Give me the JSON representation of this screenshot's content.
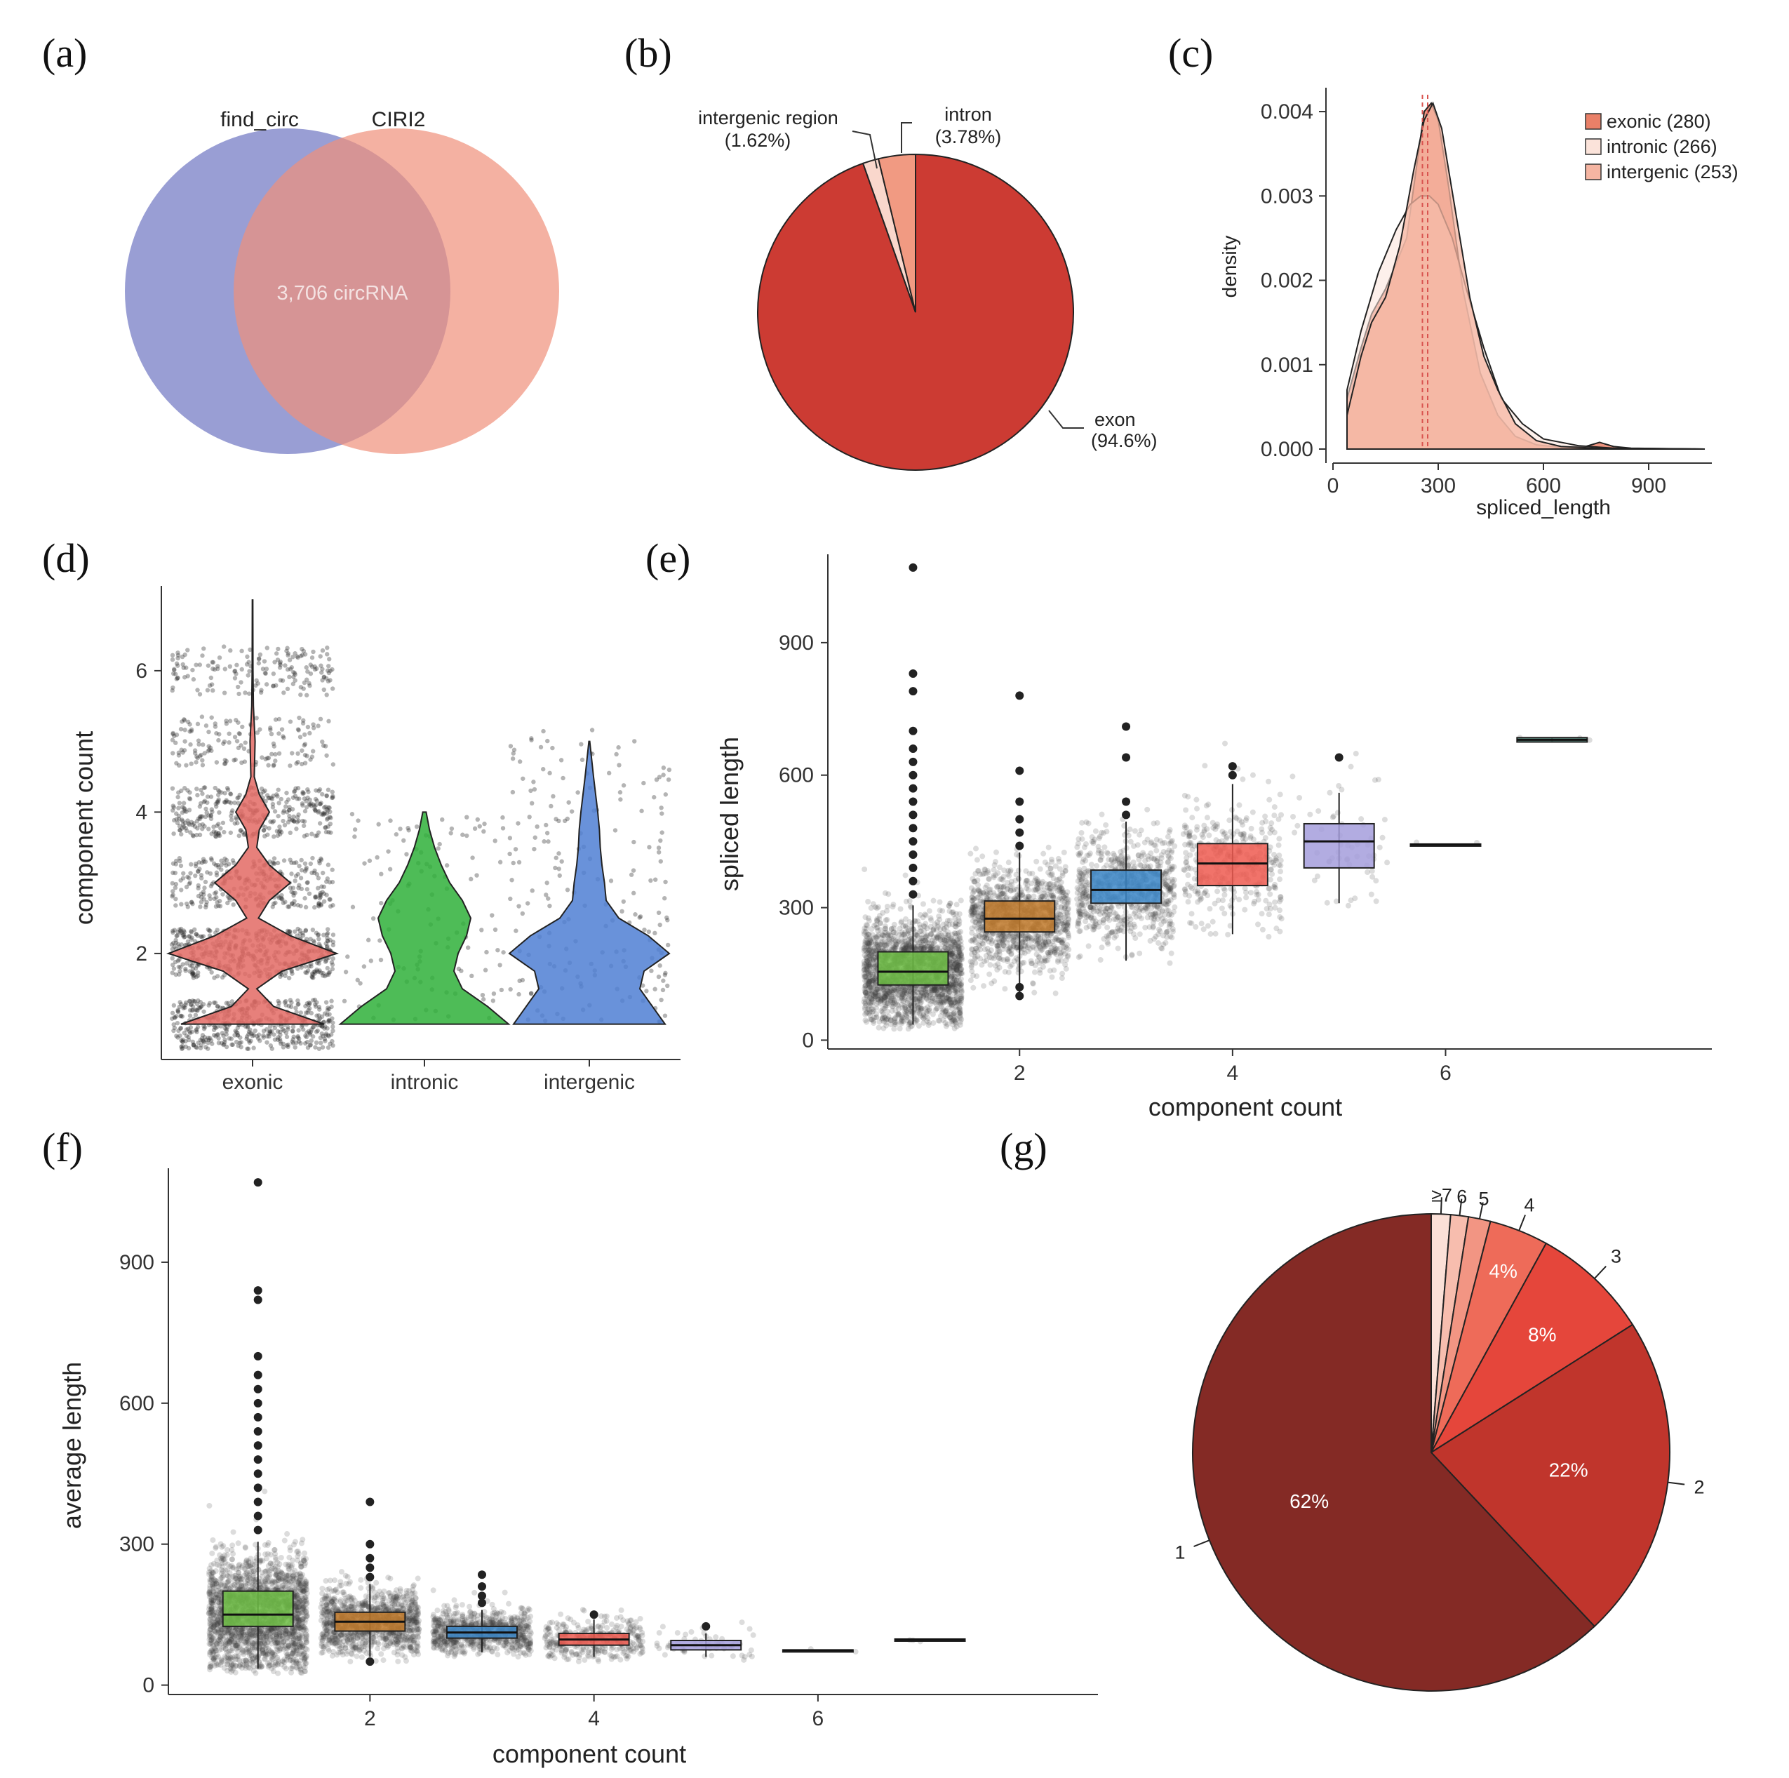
{
  "panels": {
    "a": "(a)",
    "b": "(b)",
    "c": "(c)",
    "d": "(d)",
    "e": "(e)",
    "f": "(f)",
    "g": "(g)"
  },
  "chart_data": [
    {
      "id": "a",
      "type": "venn",
      "sets": [
        {
          "name": "find_circ",
          "color": "#7f86c9"
        },
        {
          "name": "CIRI2",
          "color": "#f0907a"
        }
      ],
      "intersection_label": "3,706 circRNA"
    },
    {
      "id": "b",
      "type": "pie",
      "slices": [
        {
          "label": "exon",
          "pct_label": "(94.6%)",
          "value": 94.6,
          "color": "#cc3b33"
        },
        {
          "label": "intergenic region",
          "pct_label": "(1.62%)",
          "value": 1.62,
          "color": "#f9d7cc"
        },
        {
          "label": "intron",
          "pct_label": "(3.78%)",
          "value": 3.78,
          "color": "#f19a82"
        }
      ]
    },
    {
      "id": "c",
      "type": "area",
      "xlabel": "spliced_length",
      "ylabel": "density",
      "xlim": [
        0,
        1080
      ],
      "ylim": [
        0,
        0.0042
      ],
      "xticks": [
        "0",
        "300",
        "600",
        "900"
      ],
      "yticks": [
        "0.000",
        "0.001",
        "0.002",
        "0.003",
        "0.004"
      ],
      "legend": [
        "exonic (280)",
        "intronic (266)",
        "intergenic (253)"
      ],
      "legend_colors": [
        "#e98068",
        "#fbe3da",
        "#f5b5a2"
      ],
      "series": [
        {
          "name": "exonic (280)",
          "x": [
            40,
            80,
            110,
            150,
            180,
            210,
            240,
            260,
            280,
            300,
            330,
            370,
            420,
            470,
            520,
            580,
            650,
            720,
            760,
            800,
            850,
            1060
          ],
          "y": [
            0.0006,
            0.0012,
            0.0016,
            0.0019,
            0.0022,
            0.0025,
            0.0034,
            0.004,
            0.0041,
            0.0039,
            0.0031,
            0.0019,
            0.0009,
            0.0004,
            0.00015,
            5e-05,
            2e-05,
            3e-05,
            8e-05,
            3e-05,
            1e-05,
            0.0
          ]
        },
        {
          "name": "intronic (266)",
          "x": [
            40,
            80,
            130,
            180,
            220,
            250,
            275,
            300,
            340,
            380,
            430,
            480,
            540,
            600,
            700,
            800,
            1060
          ],
          "y": [
            0.0007,
            0.0014,
            0.0021,
            0.0026,
            0.0029,
            0.003,
            0.003,
            0.0029,
            0.0025,
            0.0019,
            0.0012,
            0.0006,
            0.0003,
            0.00012,
            4e-05,
            1e-05,
            0.0
          ]
        },
        {
          "name": "intergenic (253)",
          "x": [
            40,
            80,
            110,
            150,
            190,
            230,
            260,
            285,
            310,
            350,
            390,
            430,
            470,
            520,
            580,
            650,
            750,
            1060
          ],
          "y": [
            0.0004,
            0.0011,
            0.0015,
            0.0018,
            0.0024,
            0.0033,
            0.0039,
            0.0041,
            0.0038,
            0.0028,
            0.0018,
            0.0011,
            0.0007,
            0.0003,
            0.0001,
            3e-05,
            1e-05,
            0.0
          ]
        }
      ],
      "vlines": [
        255,
        270
      ]
    },
    {
      "id": "d",
      "type": "violin",
      "xlabel": "",
      "ylabel": "component count",
      "ylim": [
        0.5,
        7.2
      ],
      "yticks": [
        2,
        4,
        6
      ],
      "categories": [
        "exonic",
        "intronic",
        "intergenic"
      ],
      "colors": [
        "#e36a64",
        "#2fb03a",
        "#4f7fd4"
      ],
      "widths": [
        [
          [
            1,
            0.85
          ],
          [
            1.25,
            0.25
          ],
          [
            1.5,
            0.05
          ],
          [
            1.75,
            0.35
          ],
          [
            2,
            1.0
          ],
          [
            2.25,
            0.45
          ],
          [
            2.5,
            0.07
          ],
          [
            2.75,
            0.2
          ],
          [
            3,
            0.45
          ],
          [
            3.25,
            0.2
          ],
          [
            3.5,
            0.05
          ],
          [
            3.75,
            0.08
          ],
          [
            4,
            0.2
          ],
          [
            4.25,
            0.08
          ],
          [
            4.5,
            0.02
          ],
          [
            5,
            0.03
          ],
          [
            5.5,
            0.01
          ],
          [
            6,
            0.005
          ],
          [
            7,
            0.003
          ]
        ],
        [
          [
            1,
            1.0
          ],
          [
            1.25,
            0.75
          ],
          [
            1.5,
            0.45
          ],
          [
            1.75,
            0.35
          ],
          [
            2,
            0.4
          ],
          [
            2.25,
            0.5
          ],
          [
            2.5,
            0.55
          ],
          [
            2.75,
            0.45
          ],
          [
            3,
            0.3
          ],
          [
            3.25,
            0.2
          ],
          [
            3.5,
            0.12
          ],
          [
            3.75,
            0.06
          ],
          [
            4,
            0.02
          ]
        ],
        [
          [
            1,
            0.9
          ],
          [
            1.25,
            0.75
          ],
          [
            1.5,
            0.6
          ],
          [
            1.75,
            0.65
          ],
          [
            2,
            0.95
          ],
          [
            2.25,
            0.7
          ],
          [
            2.5,
            0.35
          ],
          [
            2.75,
            0.2
          ],
          [
            3,
            0.18
          ],
          [
            3.25,
            0.15
          ],
          [
            3.5,
            0.13
          ],
          [
            3.75,
            0.12
          ],
          [
            4,
            0.1
          ],
          [
            4.5,
            0.05
          ],
          [
            5,
            0.005
          ]
        ]
      ]
    },
    {
      "id": "e",
      "type": "box",
      "xlabel": "component count",
      "ylabel": "spliced length",
      "xlim": [
        0.2,
        8.5
      ],
      "ylim": [
        -20,
        1100
      ],
      "xticks": [
        2,
        4,
        6
      ],
      "yticks": [
        0,
        300,
        600,
        900
      ],
      "groups": [
        {
          "x": 1,
          "color": "#6fbe45",
          "q1": 125,
          "median": 155,
          "q3": 200,
          "lo": 35,
          "hi": 305,
          "outliers": [
            330,
            360,
            390,
            420,
            450,
            480,
            510,
            540,
            570,
            600,
            630,
            660,
            700,
            790,
            830,
            1070
          ]
        },
        {
          "x": 2,
          "color": "#c17a2b",
          "q1": 245,
          "median": 275,
          "q3": 315,
          "lo": 105,
          "hi": 425,
          "outliers": [
            100,
            120,
            440,
            470,
            500,
            540,
            610,
            780
          ]
        },
        {
          "x": 3,
          "color": "#3d88c9",
          "q1": 310,
          "median": 340,
          "q3": 385,
          "lo": 180,
          "hi": 495,
          "outliers": [
            510,
            540,
            640,
            710
          ]
        },
        {
          "x": 4,
          "color": "#ee5a50",
          "q1": 350,
          "median": 400,
          "q3": 445,
          "lo": 240,
          "hi": 580,
          "outliers": [
            600,
            620
          ]
        },
        {
          "x": 5,
          "color": "#a59ddc",
          "q1": 390,
          "median": 450,
          "q3": 490,
          "lo": 310,
          "hi": 560,
          "outliers": [
            640
          ]
        },
        {
          "x": 6,
          "color": "#4a8a7a",
          "q1": 442,
          "median": 443,
          "q3": 444,
          "lo": 442,
          "hi": 444,
          "outliers": []
        },
        {
          "x": 7,
          "color": "#4a8a7a",
          "q1": 675,
          "median": 680,
          "q3": 685,
          "lo": 675,
          "hi": 685,
          "outliers": []
        }
      ]
    },
    {
      "id": "f",
      "type": "box",
      "xlabel": "component count",
      "ylabel": "average length",
      "xlim": [
        0.2,
        8.5
      ],
      "ylim": [
        -20,
        1100
      ],
      "xticks": [
        2,
        4,
        6
      ],
      "yticks": [
        0,
        300,
        600,
        900
      ],
      "groups": [
        {
          "x": 1,
          "color": "#6fbe45",
          "q1": 125,
          "median": 150,
          "q3": 200,
          "lo": 35,
          "hi": 305,
          "outliers": [
            330,
            360,
            390,
            420,
            450,
            480,
            510,
            540,
            570,
            600,
            630,
            660,
            700,
            820,
            840,
            1070
          ]
        },
        {
          "x": 2,
          "color": "#c17a2b",
          "q1": 115,
          "median": 135,
          "q3": 155,
          "lo": 60,
          "hi": 215,
          "outliers": [
            50,
            230,
            250,
            270,
            300,
            390
          ]
        },
        {
          "x": 3,
          "color": "#3d88c9",
          "q1": 100,
          "median": 112,
          "q3": 125,
          "lo": 70,
          "hi": 160,
          "outliers": [
            175,
            190,
            210,
            235
          ]
        },
        {
          "x": 4,
          "color": "#ee5a50",
          "q1": 85,
          "median": 97,
          "q3": 110,
          "lo": 60,
          "hi": 140,
          "outliers": [
            150
          ]
        },
        {
          "x": 5,
          "color": "#a59ddc",
          "q1": 75,
          "median": 85,
          "q3": 95,
          "lo": 60,
          "hi": 110,
          "outliers": [
            125
          ]
        },
        {
          "x": 6,
          "color": "#4a8a7a",
          "q1": 73,
          "median": 74,
          "q3": 75,
          "lo": 73,
          "hi": 75,
          "outliers": []
        },
        {
          "x": 7,
          "color": "#4a8a7a",
          "q1": 96,
          "median": 97,
          "q3": 98,
          "lo": 96,
          "hi": 98,
          "outliers": []
        }
      ]
    },
    {
      "id": "g",
      "type": "pie",
      "slices": [
        {
          "label": "1",
          "pct_label": "62%",
          "value": 62,
          "color": "#842a25"
        },
        {
          "label": "2",
          "pct_label": "22%",
          "value": 22,
          "color": "#c0352c"
        },
        {
          "label": "3",
          "pct_label": "8%",
          "value": 8,
          "color": "#e5463b"
        },
        {
          "label": "4",
          "pct_label": "4%",
          "value": 4,
          "color": "#ee6b59"
        },
        {
          "label": "5",
          "pct_label": "",
          "value": 1.5,
          "color": "#f29583"
        },
        {
          "label": "6",
          "pct_label": "",
          "value": 1.2,
          "color": "#f7bdae"
        },
        {
          "label": "≥7",
          "pct_label": "",
          "value": 1.3,
          "color": "#fbe0d7"
        }
      ]
    }
  ]
}
